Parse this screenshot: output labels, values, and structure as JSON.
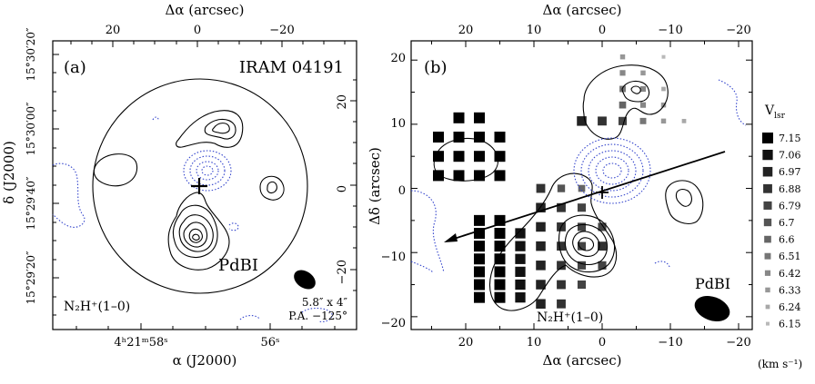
{
  "colors": {
    "negative_contour": "#3344cc",
    "positive_contour": "#000000",
    "background": "#ffffff"
  },
  "panel_a": {
    "label": "(a)",
    "title": "IRAM 04191",
    "beam_text_1": "5.8″ x 4″",
    "beam_text_2": "P.A. −125°",
    "instrument": "PdBI",
    "line": "N₂H⁺(1–0)",
    "top_axis_label": "Δα (arcsec)",
    "top_ticks": [
      "20",
      "0",
      "−20"
    ],
    "right_ticks": [
      "20",
      "0",
      "−20"
    ],
    "bottom_axis_label": "α (J2000)",
    "bottom_ticks": [
      "4ʰ21ᵐ58ˢ",
      "56ˢ"
    ],
    "left_axis_label": "δ (J2000)",
    "left_ticks": [
      "15°30′20″",
      "15°30′00″",
      "15°29′40″",
      "15°29′20″"
    ]
  },
  "panel_b": {
    "label": "(b)",
    "instrument": "PdBI",
    "line": "N₂H⁺(1–0)",
    "top_axis_label": "Δα (arcsec)",
    "bottom_axis_label": "Δα (arcsec)",
    "left_axis_label": "Δδ (arcsec)",
    "x_ticks": [
      "20",
      "10",
      "0",
      "−10",
      "−20"
    ],
    "y_ticks": [
      "20",
      "10",
      "0",
      "−10",
      "−20"
    ],
    "legend_title": "V",
    "legend_title_sub": "lsr",
    "legend_unit": "(km s⁻¹)",
    "legend_values": [
      "7.15",
      "7.06",
      "6.97",
      "6.88",
      "6.79",
      "6.7",
      "6.6",
      "6.51",
      "6.42",
      "6.33",
      "6.24",
      "6.15"
    ]
  },
  "chart_data": [
    {
      "type": "heatmap",
      "panel": "a",
      "title": "IRAM 04191",
      "xlabel": "α (J2000)",
      "ylabel": "δ (J2000)",
      "x2label": "Δα (arcsec)",
      "xlim_arcsec": [
        34,
        -34
      ],
      "ylim_arcsec": [
        -34,
        34
      ],
      "primary_beam_radius_arcsec": 24,
      "protostar_offset_arcsec": [
        0,
        0
      ],
      "positive_peaks_arcsec": [
        [
          4,
          -8
        ],
        [
          -3,
          11
        ],
        [
          -11,
          0
        ],
        [
          17,
          4
        ]
      ],
      "negative_peak_arcsec": [
        1,
        4
      ],
      "synthesized_beam": {
        "major_arcsec": 5.8,
        "minor_arcsec": 4,
        "pa_deg": -125
      }
    },
    {
      "type": "scatter",
      "panel": "b",
      "xlabel": "Δα (arcsec)",
      "ylabel": "Δδ (arcsec)",
      "xlim": [
        28,
        -22
      ],
      "ylim": [
        -22,
        23
      ],
      "outflow_axis": {
        "from": [
          -18,
          8
        ],
        "to": [
          25,
          -8
        ]
      },
      "protostar": [
        0,
        0
      ],
      "velocity_levels_kms": [
        7.15,
        7.06,
        6.97,
        6.88,
        6.79,
        6.7,
        6.6,
        6.51,
        6.42,
        6.33,
        6.24,
        6.15
      ],
      "velocity_points": [
        {
          "x": 21,
          "y": 11,
          "v": 7.15
        },
        {
          "x": 18,
          "y": 11,
          "v": 7.15
        },
        {
          "x": 24,
          "y": 8,
          "v": 7.15
        },
        {
          "x": 21,
          "y": 8,
          "v": 7.15
        },
        {
          "x": 18,
          "y": 8,
          "v": 7.15
        },
        {
          "x": 15,
          "y": 8,
          "v": 7.15
        },
        {
          "x": 24,
          "y": 5,
          "v": 7.15
        },
        {
          "x": 21,
          "y": 5,
          "v": 7.15
        },
        {
          "x": 18,
          "y": 5,
          "v": 7.15
        },
        {
          "x": 15,
          "y": 5,
          "v": 7.15
        },
        {
          "x": 24,
          "y": 2,
          "v": 7.15
        },
        {
          "x": 21,
          "y": 2,
          "v": 7.15
        },
        {
          "x": 18,
          "y": 2,
          "v": 7.15
        },
        {
          "x": 15,
          "y": 2,
          "v": 7.15
        },
        {
          "x": 18,
          "y": -7,
          "v": 7.15
        },
        {
          "x": 15,
          "y": -7,
          "v": 7.15
        },
        {
          "x": 12,
          "y": -7,
          "v": 7.06
        },
        {
          "x": 18,
          "y": -9,
          "v": 7.15
        },
        {
          "x": 15,
          "y": -9,
          "v": 7.15
        },
        {
          "x": 12,
          "y": -9,
          "v": 7.06
        },
        {
          "x": 18,
          "y": -11,
          "v": 7.15
        },
        {
          "x": 15,
          "y": -11,
          "v": 7.15
        },
        {
          "x": 12,
          "y": -11,
          "v": 7.06
        },
        {
          "x": 18,
          "y": -13,
          "v": 7.15
        },
        {
          "x": 15,
          "y": -13,
          "v": 7.15
        },
        {
          "x": 12,
          "y": -13,
          "v": 7.06
        },
        {
          "x": 18,
          "y": -15,
          "v": 7.15
        },
        {
          "x": 15,
          "y": -15,
          "v": 7.15
        },
        {
          "x": 12,
          "y": -15,
          "v": 7.06
        },
        {
          "x": 18,
          "y": -17,
          "v": 7.15
        },
        {
          "x": 15,
          "y": -17,
          "v": 7.15
        },
        {
          "x": 12,
          "y": -17,
          "v": 7.06
        },
        {
          "x": 18,
          "y": -5,
          "v": 7.15
        },
        {
          "x": 15,
          "y": -5,
          "v": 7.15
        },
        {
          "x": 9,
          "y": -3,
          "v": 6.97
        },
        {
          "x": 6,
          "y": -3,
          "v": 6.88
        },
        {
          "x": 3,
          "y": -3,
          "v": 6.79
        },
        {
          "x": 9,
          "y": -6,
          "v": 6.97
        },
        {
          "x": 6,
          "y": -6,
          "v": 6.88
        },
        {
          "x": 3,
          "y": -6,
          "v": 6.79
        },
        {
          "x": 0,
          "y": -6,
          "v": 6.79
        },
        {
          "x": 9,
          "y": -9,
          "v": 6.97
        },
        {
          "x": 6,
          "y": -9,
          "v": 6.88
        },
        {
          "x": 3,
          "y": -9,
          "v": 6.79
        },
        {
          "x": 0,
          "y": -9,
          "v": 6.88
        },
        {
          "x": 9,
          "y": -12,
          "v": 6.97
        },
        {
          "x": 6,
          "y": -12,
          "v": 6.88
        },
        {
          "x": 3,
          "y": -12,
          "v": 6.79
        },
        {
          "x": 0,
          "y": -12,
          "v": 6.79
        },
        {
          "x": 9,
          "y": -15,
          "v": 6.97
        },
        {
          "x": 6,
          "y": -15,
          "v": 6.88
        },
        {
          "x": 3,
          "y": -15,
          "v": 6.79
        },
        {
          "x": 9,
          "y": -18,
          "v": 6.97
        },
        {
          "x": 6,
          "y": -18,
          "v": 6.88
        },
        {
          "x": 9,
          "y": 0,
          "v": 6.88
        },
        {
          "x": 6,
          "y": 0,
          "v": 6.7
        },
        {
          "x": 3,
          "y": 0,
          "v": 6.6
        },
        {
          "x": 3,
          "y": 10.5,
          "v": 6.97
        },
        {
          "x": 0,
          "y": 10.5,
          "v": 6.88
        },
        {
          "x": -3,
          "y": 10.5,
          "v": 6.79
        },
        {
          "x": -6,
          "y": 10.5,
          "v": 6.51
        },
        {
          "x": -9,
          "y": 10.5,
          "v": 6.33
        },
        {
          "x": -12,
          "y": 10.5,
          "v": 6.24
        },
        {
          "x": -3,
          "y": 13,
          "v": 6.6
        },
        {
          "x": -6,
          "y": 13,
          "v": 6.42
        },
        {
          "x": -9,
          "y": 13,
          "v": 6.33
        },
        {
          "x": -3,
          "y": 15.5,
          "v": 6.51
        },
        {
          "x": -6,
          "y": 15.5,
          "v": 6.42
        },
        {
          "x": -9,
          "y": 15.5,
          "v": 6.24
        },
        {
          "x": -3,
          "y": 18,
          "v": 6.42
        },
        {
          "x": -6,
          "y": 18,
          "v": 6.33
        },
        {
          "x": -3,
          "y": 20.5,
          "v": 6.33
        },
        {
          "x": -9,
          "y": 20.5,
          "v": 6.15
        }
      ]
    }
  ]
}
